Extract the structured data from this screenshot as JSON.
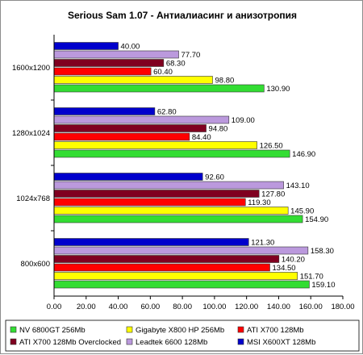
{
  "chart_data": {
    "type": "bar",
    "orientation": "horizontal",
    "title": "Serious Sam 1.07 - Антиалиасинг и анизотропия",
    "categories": [
      "1600x1200",
      "1280x1024",
      "1024x768",
      "800x600"
    ],
    "xlim": [
      0,
      180
    ],
    "xticks": [
      "0.00",
      "20.00",
      "40.00",
      "60.00",
      "80.00",
      "100.00",
      "120.00",
      "140.00",
      "160.00",
      "180.00"
    ],
    "grid": false,
    "legend_position": "bottom",
    "series": [
      {
        "name": "MSI X600XT 128Mb",
        "color": "#0000cc",
        "values": [
          40.0,
          62.8,
          92.6,
          121.3
        ],
        "labels": [
          "40.00",
          "62.80",
          "92.60",
          "121.30"
        ]
      },
      {
        "name": "Leadtek 6600 128Mb",
        "color": "#bb99dd",
        "values": [
          77.7,
          109.0,
          143.1,
          158.3
        ],
        "labels": [
          "77.70",
          "109.00",
          "143.10",
          "158.30"
        ]
      },
      {
        "name": "ATI X700 128Mb Overclocked",
        "color": "#800020",
        "values": [
          68.3,
          94.8,
          127.8,
          140.2
        ],
        "labels": [
          "68.30",
          "94.80",
          "127.80",
          "140.20"
        ]
      },
      {
        "name": "ATI X700 128Mb",
        "color": "#ff0000",
        "values": [
          60.4,
          84.4,
          119.3,
          134.5
        ],
        "labels": [
          "60.40",
          "84.40",
          "119.30",
          "134.50"
        ]
      },
      {
        "name": "Gigabyte X800 HP 256Mb",
        "color": "#ffff00",
        "values": [
          98.8,
          126.5,
          145.9,
          151.7
        ],
        "labels": [
          "98.80",
          "126.50",
          "145.90",
          "151.70"
        ]
      },
      {
        "name": "NV 6800GT 256Mb",
        "color": "#33dd33",
        "values": [
          130.9,
          146.9,
          154.9,
          159.1
        ],
        "labels": [
          "130.90",
          "146.90",
          "154.90",
          "159.10"
        ]
      }
    ],
    "legend_order": [
      "NV 6800GT 256Mb",
      "Gigabyte X800 HP 256Mb",
      "ATI X700 128Mb",
      "ATI X700 128Mb Overclocked",
      "Leadtek 6600 128Mb",
      "MSI X600XT 128Mb"
    ]
  }
}
